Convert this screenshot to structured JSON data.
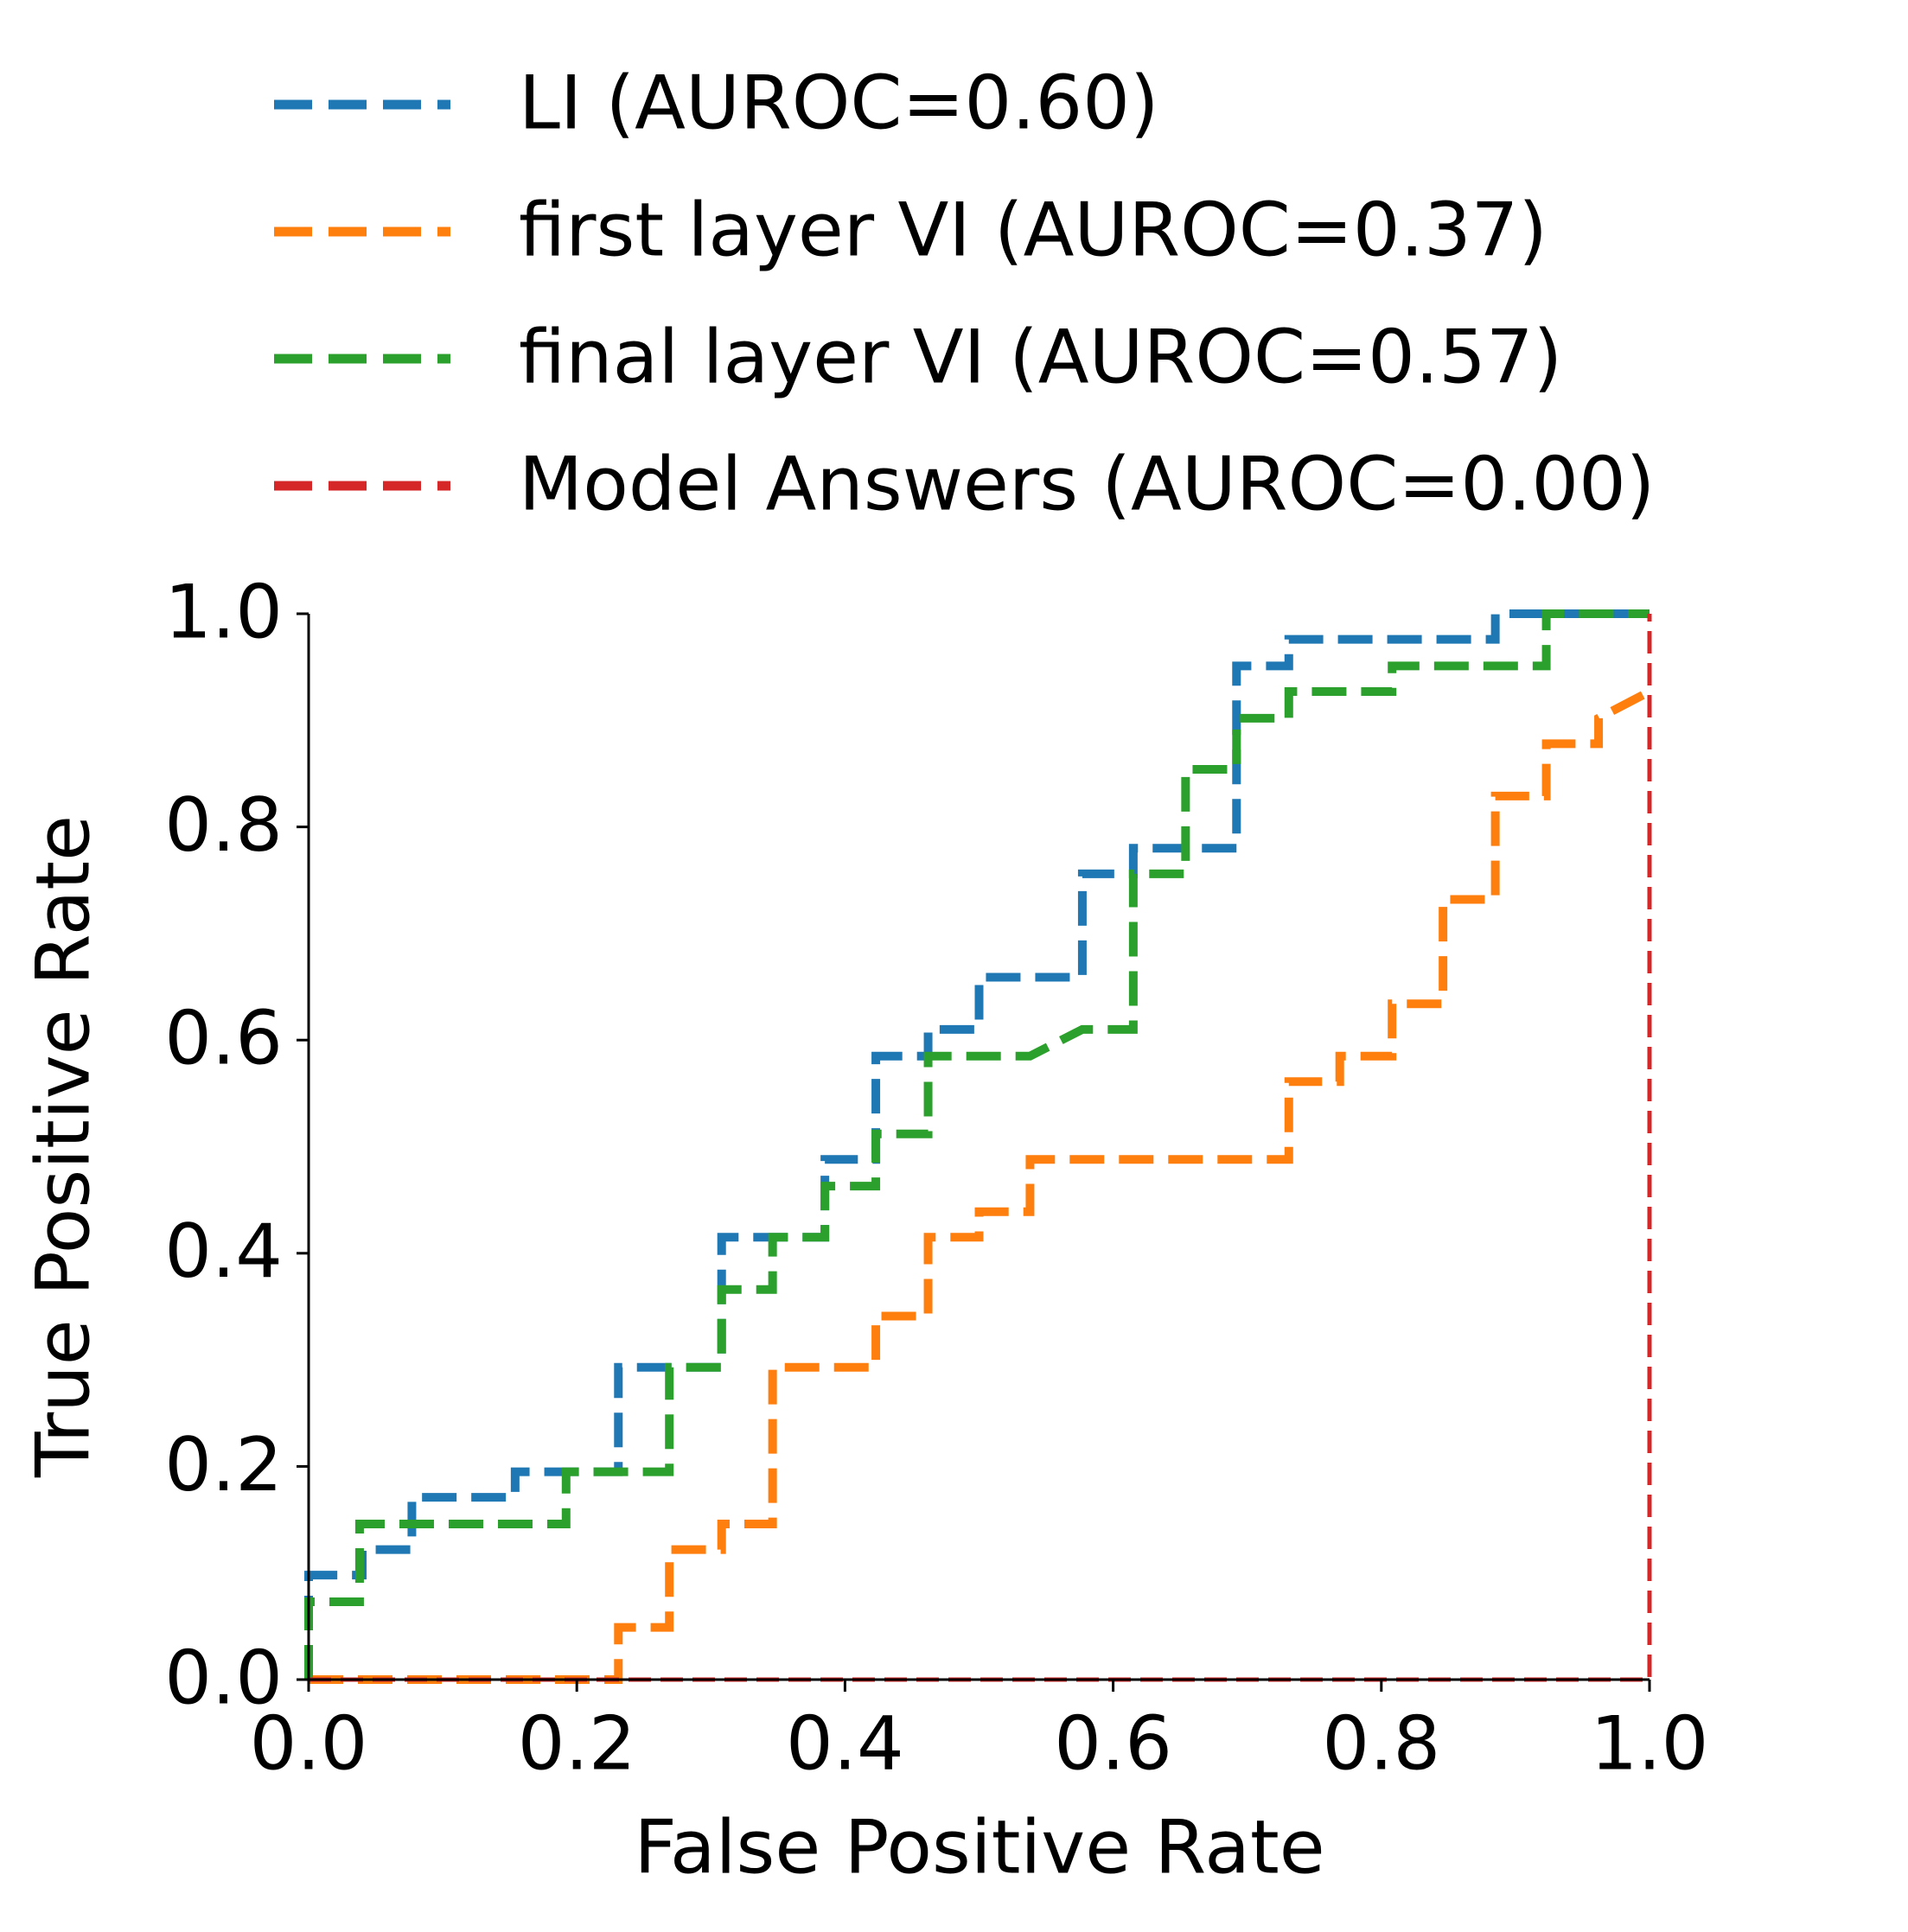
{
  "chart_data": {
    "type": "line",
    "xlabel": "False Positive Rate",
    "ylabel": "True Positive Rate",
    "xlim": [
      0,
      1
    ],
    "ylim": [
      0,
      1
    ],
    "xticks": [
      {
        "value": 0,
        "label": "0.0"
      },
      0.2,
      0.4,
      0.6,
      0.8,
      {
        "value": 1,
        "label": "1.0"
      }
    ],
    "yticks": [
      {
        "value": 0,
        "label": "0.0"
      },
      0.2,
      0.4,
      0.6,
      0.8,
      {
        "value": 1,
        "label": "1.0"
      }
    ],
    "linestyle": "dashed",
    "legend": "top",
    "series": [
      {
        "name": "LI (AUROC=0.60)",
        "color": "#1f77b4",
        "x": [
          0,
          0,
          0.04,
          0.04,
          0.077,
          0.077,
          0.154,
          0.154,
          0.231,
          0.231,
          0.308,
          0.308,
          0.385,
          0.385,
          0.423,
          0.423,
          0.462,
          0.462,
          0.5,
          0.5,
          0.577,
          0.577,
          0.615,
          0.615,
          0.692,
          0.692,
          0.731,
          0.731,
          0.885,
          0.885,
          1.0
        ],
        "values": [
          0,
          0.098,
          0.098,
          0.122,
          0.122,
          0.171,
          0.171,
          0.195,
          0.195,
          0.293,
          0.293,
          0.415,
          0.415,
          0.488,
          0.488,
          0.585,
          0.585,
          0.61,
          0.61,
          0.659,
          0.659,
          0.756,
          0.756,
          0.78,
          0.78,
          0.951,
          0.951,
          0.976,
          0.976,
          1.0,
          1.0
        ]
      },
      {
        "name": "first layer VI (AUROC=0.37)",
        "color": "#ff7f0e",
        "x": [
          0,
          0.231,
          0.231,
          0.269,
          0.269,
          0.308,
          0.308,
          0.346,
          0.346,
          0.423,
          0.423,
          0.462,
          0.462,
          0.5,
          0.5,
          0.538,
          0.538,
          0.731,
          0.731,
          0.769,
          0.769,
          0.808,
          0.808,
          0.846,
          0.846,
          0.885,
          0.885,
          0.923,
          0.923,
          0.962,
          0.962,
          1.0
        ],
        "values": [
          0,
          0,
          0.049,
          0.049,
          0.122,
          0.122,
          0.146,
          0.146,
          0.293,
          0.293,
          0.341,
          0.341,
          0.415,
          0.415,
          0.439,
          0.439,
          0.488,
          0.488,
          0.561,
          0.561,
          0.585,
          0.585,
          0.634,
          0.634,
          0.732,
          0.732,
          0.829,
          0.829,
          0.878,
          0.878,
          0.902,
          0.927
        ]
      },
      {
        "name": "final layer VI (AUROC=0.57)",
        "color": "#2ca02c",
        "x": [
          0,
          0,
          0.038,
          0.038,
          0.192,
          0.192,
          0.269,
          0.269,
          0.308,
          0.308,
          0.346,
          0.346,
          0.385,
          0.385,
          0.423,
          0.423,
          0.462,
          0.462,
          0.538,
          0.577,
          0.615,
          0.615,
          0.654,
          0.654,
          0.692,
          0.692,
          0.731,
          0.731,
          0.808,
          0.808,
          0.923,
          0.923,
          1.0
        ],
        "values": [
          0,
          0.073,
          0.073,
          0.146,
          0.146,
          0.195,
          0.195,
          0.293,
          0.293,
          0.366,
          0.366,
          0.415,
          0.415,
          0.463,
          0.463,
          0.512,
          0.512,
          0.585,
          0.585,
          0.61,
          0.61,
          0.756,
          0.756,
          0.854,
          0.854,
          0.902,
          0.902,
          0.927,
          0.927,
          0.951,
          0.951,
          1.0,
          1.0
        ]
      },
      {
        "name": "Model Answers (AUROC=0.00)",
        "color": "#d62728",
        "x": [
          0,
          1.0,
          1.0
        ],
        "values": [
          0,
          0,
          1.0
        ]
      }
    ]
  }
}
